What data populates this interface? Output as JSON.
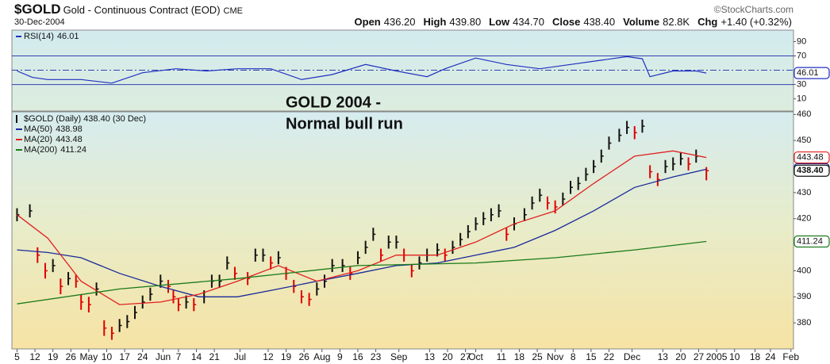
{
  "header": {
    "symbol": "$GOLD",
    "name": "Gold - Continuous Contract (EOD)",
    "exchange": "CME",
    "source": "©StockCharts.com",
    "date": "30-Dec-2004",
    "stats": [
      {
        "label": "Open",
        "value": "436.20"
      },
      {
        "label": "High",
        "value": "439.80"
      },
      {
        "label": "Low",
        "value": "434.70"
      },
      {
        "label": "Close",
        "value": "438.40"
      },
      {
        "label": "Volume",
        "value": "82.8K"
      },
      {
        "label": "Chg",
        "value": "+1.40 (+0.32%)"
      }
    ]
  },
  "chart_data": [
    {
      "type": "line",
      "name": "RSI(14)",
      "last_label": "46.01",
      "color": "#2030c0",
      "x": [
        0,
        6,
        12,
        25,
        37,
        49,
        62,
        74,
        86,
        99,
        111,
        123,
        136,
        148,
        160,
        167,
        179,
        191,
        204,
        216,
        228,
        238,
        244,
        247,
        256,
        265,
        269
      ],
      "values": [
        49,
        40,
        37,
        37,
        32,
        46.5,
        52,
        49,
        52,
        52,
        37,
        44,
        58,
        49,
        41,
        52,
        67,
        58,
        52,
        58,
        64,
        69,
        66,
        41,
        49,
        49,
        46.01
      ],
      "ylim": [
        -7,
        106
      ],
      "yticks": [
        10,
        30,
        70,
        90
      ],
      "levels": [
        30,
        50,
        70
      ]
    },
    {
      "type": "ohlc",
      "name": "$GOLD (Daily) 438.40 (30 Dec)",
      "last_label": "438.40",
      "up_color": "#111111",
      "down_color": "#e00000",
      "annotation": [
        "GOLD 2004 -",
        "Normal bull run"
      ],
      "x": [
        0,
        5,
        8,
        11,
        14,
        17,
        20,
        23,
        25,
        28,
        31,
        34,
        37,
        40,
        43,
        46,
        49,
        52,
        56,
        59,
        61,
        63,
        66,
        69,
        73,
        76,
        79,
        82,
        85,
        90,
        93,
        96,
        99,
        102,
        105,
        108,
        111,
        114,
        117,
        120,
        123,
        127,
        130,
        133,
        136,
        139,
        142,
        145,
        148,
        151,
        154,
        157,
        160,
        164,
        167,
        170,
        173,
        176,
        179,
        182,
        185,
        188,
        191,
        194,
        198,
        201,
        204,
        207,
        210,
        213,
        216,
        219,
        222,
        225,
        228,
        231,
        235,
        238,
        241,
        244,
        247,
        250,
        253,
        256,
        259,
        262,
        265,
        269
      ],
      "high": [
        424,
        425.5,
        409,
        403,
        404.5,
        397,
        399.5,
        398.5,
        391,
        390,
        395.5,
        381,
        378.5,
        381.5,
        383,
        386.5,
        390.5,
        393.5,
        398.5,
        396.5,
        392.5,
        389.5,
        390.5,
        389.5,
        392.5,
        398.5,
        398.5,
        405.5,
        401.5,
        399.5,
        408.5,
        408.5,
        405.5,
        407.5,
        401.5,
        396.5,
        392.5,
        391.5,
        395.5,
        398.5,
        404.5,
        404.5,
        401.5,
        407.5,
        411.5,
        416.5,
        408.5,
        413.5,
        413.5,
        408.5,
        402.5,
        405.5,
        408.5,
        410.5,
        408.5,
        411.5,
        414.5,
        417.5,
        420.5,
        422.5,
        424,
        425.5,
        416.5,
        420.5,
        424,
        428.5,
        431.5,
        428.5,
        427,
        430,
        434.5,
        436,
        439.5,
        442.5,
        446.5,
        451.5,
        454.5,
        457.5,
        455.5,
        458,
        440.5,
        437.5,
        442.5,
        443.5,
        445.5,
        443.5,
        446.5,
        439.8
      ],
      "low": [
        419,
        420.5,
        403,
        397,
        399.5,
        391,
        394.5,
        393.5,
        385,
        384,
        390.5,
        375,
        373.5,
        376.5,
        378,
        381.5,
        385.5,
        388.5,
        393.5,
        391.5,
        387.5,
        384.5,
        385.5,
        384.5,
        387.5,
        393.5,
        393.5,
        400.5,
        396.5,
        394.5,
        403.5,
        403.5,
        400.5,
        402.5,
        396.5,
        391.5,
        387.5,
        386.5,
        390.5,
        393.5,
        399.5,
        399.5,
        396.5,
        402.5,
        406.5,
        411.5,
        403.5,
        408.5,
        408.5,
        403.5,
        397.5,
        400.5,
        403.5,
        405.5,
        403.5,
        406.5,
        409.5,
        412.5,
        415.5,
        417.5,
        419,
        420.5,
        411.5,
        415.5,
        419,
        423.5,
        426.5,
        423.5,
        422,
        425,
        429.5,
        431,
        434.5,
        437.5,
        441.5,
        446.5,
        449.5,
        452.5,
        450.5,
        453,
        435.5,
        432.5,
        437.5,
        438.5,
        440.5,
        438.5,
        441.5,
        434.7
      ],
      "close": [
        421.5,
        423,
        406,
        400,
        402,
        394,
        397,
        396,
        388,
        387,
        393,
        378,
        376,
        379,
        380.5,
        384,
        388,
        391,
        396,
        394,
        390,
        387,
        388,
        387,
        390,
        396,
        396,
        403,
        399,
        397,
        406,
        406,
        403,
        405,
        399,
        394,
        390,
        389,
        393,
        396,
        402,
        402,
        399,
        405,
        409,
        414,
        406,
        411,
        411,
        406,
        400,
        403,
        406,
        408,
        406,
        409,
        412,
        415,
        418,
        420,
        421.5,
        423,
        414,
        418,
        421.5,
        426,
        429,
        426,
        424.5,
        427.5,
        432,
        433.5,
        437,
        440,
        444,
        449,
        452,
        455,
        453,
        455.5,
        438,
        435,
        440,
        441,
        443,
        441,
        444,
        438.4
      ],
      "overlays": [
        {
          "name": "MA(50)",
          "last_label": "438.98",
          "color": "#1a2a9a",
          "x": [
            0,
            12,
            25,
            40,
            56,
            71,
            86,
            102,
            117,
            133,
            148,
            164,
            179,
            194,
            210,
            225,
            241,
            256,
            269
          ],
          "values": [
            408,
            407,
            405,
            399,
            394,
            390,
            390,
            393,
            396,
            399,
            402,
            403,
            406,
            409,
            415.5,
            423,
            432,
            436,
            438.98
          ]
        },
        {
          "name": "MA(20)",
          "last_label": "443.48",
          "color": "#e02020",
          "x": [
            0,
            12,
            25,
            40,
            56,
            71,
            86,
            102,
            117,
            133,
            148,
            164,
            179,
            194,
            210,
            225,
            241,
            256,
            269
          ],
          "values": [
            421.5,
            412.5,
            396,
            387,
            388,
            391,
            396,
            402,
            396,
            400,
            406,
            406,
            411,
            418,
            423,
            433.5,
            444,
            446,
            443.48
          ]
        },
        {
          "name": "MA(200)",
          "last_label": "411.24",
          "color": "#1a7a1a",
          "x": [
            0,
            40,
            86,
            133,
            179,
            210,
            241,
            269
          ],
          "values": [
            387.3,
            393,
            397,
            402,
            403,
            405,
            408,
            411.24
          ]
        }
      ],
      "ylim": [
        370,
        461
      ],
      "yticks": [
        380,
        390,
        400,
        420,
        430,
        450,
        460
      ],
      "xlim": [
        -2,
        303
      ],
      "xticks": [
        {
          "value": 0,
          "label": "5"
        },
        {
          "value": 7,
          "label": "12"
        },
        {
          "value": 14,
          "label": "19"
        },
        {
          "value": 21,
          "label": "26"
        },
        {
          "value": 28,
          "label": "May"
        },
        {
          "value": 35,
          "label": "10"
        },
        {
          "value": 42,
          "label": "17"
        },
        {
          "value": 49,
          "label": "24"
        },
        {
          "value": 57,
          "label": "Jun"
        },
        {
          "value": 63,
          "label": "7"
        },
        {
          "value": 70,
          "label": "14"
        },
        {
          "value": 77,
          "label": "21"
        },
        {
          "value": 87,
          "label": "Jul"
        },
        {
          "value": 98,
          "label": "12"
        },
        {
          "value": 105,
          "label": "19"
        },
        {
          "value": 112,
          "label": "26"
        },
        {
          "value": 119,
          "label": "Aug"
        },
        {
          "value": 126,
          "label": "9"
        },
        {
          "value": 133,
          "label": "16"
        },
        {
          "value": 140,
          "label": "23"
        },
        {
          "value": 149,
          "label": "Sep"
        },
        {
          "value": 161,
          "label": "13"
        },
        {
          "value": 168,
          "label": "20"
        },
        {
          "value": 175,
          "label": "27"
        },
        {
          "value": 179,
          "label": "Oct"
        },
        {
          "value": 189,
          "label": "11"
        },
        {
          "value": 196,
          "label": "18"
        },
        {
          "value": 203,
          "label": "25"
        },
        {
          "value": 210,
          "label": "Nov"
        },
        {
          "value": 217,
          "label": "8"
        },
        {
          "value": 224,
          "label": "15"
        },
        {
          "value": 231,
          "label": "22"
        },
        {
          "value": 240,
          "label": "Dec"
        },
        {
          "value": 252,
          "label": "13"
        },
        {
          "value": 259,
          "label": "20"
        },
        {
          "value": 266,
          "label": "27"
        },
        {
          "value": 273,
          "label": "2005"
        },
        {
          "value": 280,
          "label": "10"
        },
        {
          "value": 288,
          "label": "18"
        },
        {
          "value": 294,
          "label": "24"
        },
        {
          "value": 302,
          "label": "Feb"
        }
      ]
    }
  ]
}
